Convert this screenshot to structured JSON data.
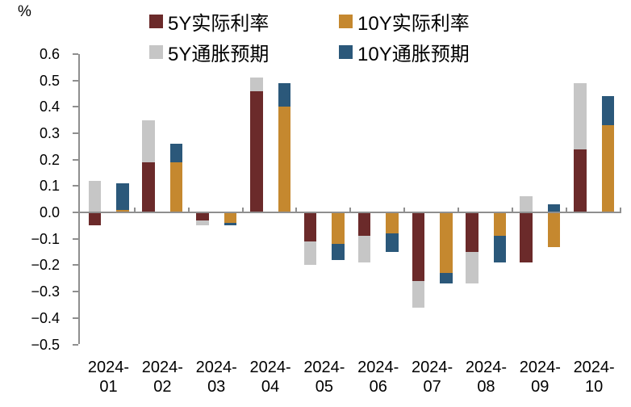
{
  "chart_data": {
    "type": "bar",
    "subtype": "stacked",
    "title": "",
    "unit": "%",
    "xlabel": "",
    "ylabel": "%",
    "ylim": [
      -0.5,
      0.6
    ],
    "ytick_step": 0.1,
    "ytick_labels": [
      "0.6",
      "0.5",
      "0.4",
      "0.3",
      "0.2",
      "0.1",
      "0.0",
      "−0.1",
      "−0.2",
      "−0.3",
      "−0.4",
      "−0.5"
    ],
    "grid": false,
    "legend_position": "top",
    "axis_color": "#8F8F8F",
    "text_color": "#000000",
    "background_color": "#FFFFFF",
    "categories": [
      "2024-01",
      "2024-02",
      "2024-03",
      "2024-04",
      "2024-05",
      "2024-06",
      "2024-07",
      "2024-08",
      "2024-09",
      "2024-10"
    ],
    "series": [
      {
        "name": "5Y实际利率",
        "stack": "5Y",
        "color": "#6B2A2A",
        "values": [
          -0.05,
          0.19,
          -0.03,
          0.46,
          -0.11,
          -0.09,
          -0.26,
          -0.15,
          -0.19,
          0.24
        ]
      },
      {
        "name": "10Y实际利率",
        "stack": "10Y",
        "color": "#C5882F",
        "values": [
          0.01,
          0.19,
          -0.04,
          0.4,
          -0.12,
          -0.08,
          -0.23,
          -0.09,
          -0.13,
          0.33
        ]
      },
      {
        "name": "5Y通胀预期",
        "stack": "5Y",
        "color": "#C6C6C6",
        "values": [
          0.12,
          0.16,
          -0.02,
          0.05,
          -0.09,
          -0.1,
          -0.1,
          -0.12,
          0.06,
          0.25
        ]
      },
      {
        "name": "10Y通胀预期",
        "stack": "10Y",
        "color": "#2B587A",
        "values": [
          0.1,
          0.07,
          -0.01,
          0.09,
          -0.06,
          -0.07,
          -0.04,
          -0.1,
          0.03,
          0.11
        ]
      }
    ]
  }
}
